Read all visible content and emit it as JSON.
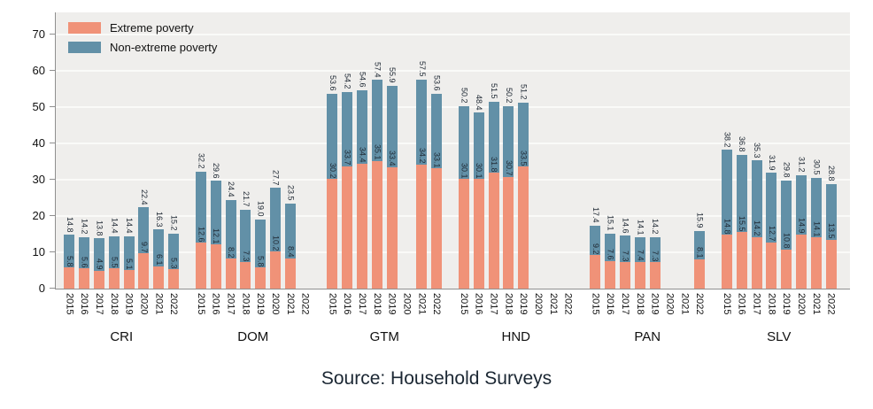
{
  "chart_data": {
    "type": "bar",
    "stacked": true,
    "title": "",
    "caption": "Source: Household Surveys",
    "legend": [
      {
        "key": "extreme",
        "label": "Extreme poverty"
      },
      {
        "key": "nonextreme",
        "label": "Non-extreme poverty"
      }
    ],
    "colors": {
      "extreme": "#F09278",
      "nonextreme": "#6290A7",
      "plot_bg": "#EFEEEC",
      "gridline": "#FAFAF8",
      "axis": "#8F8F8F"
    },
    "ylim": [
      0,
      76
    ],
    "yticks": [
      0,
      10,
      20,
      30,
      40,
      50,
      60,
      70
    ],
    "grid": true,
    "legend_position": "top-left-inside",
    "years": [
      "2015",
      "2016",
      "2017",
      "2018",
      "2019",
      "2020",
      "2021",
      "2022"
    ],
    "groups": [
      {
        "label": "CRI",
        "extreme": [
          5.8,
          5.6,
          4.9,
          5.5,
          5.1,
          9.7,
          6.1,
          5.3
        ],
        "total": [
          14.8,
          14.2,
          13.8,
          14.4,
          14.4,
          22.4,
          16.3,
          15.2
        ]
      },
      {
        "label": "DOM",
        "extreme": [
          12.6,
          12.1,
          8.2,
          7.3,
          5.8,
          10.2,
          8.4,
          null
        ],
        "total": [
          32.2,
          29.6,
          24.4,
          21.7,
          19.0,
          27.7,
          23.5,
          null
        ]
      },
      {
        "label": "GTM",
        "extreme": [
          30.2,
          33.7,
          34.4,
          35.1,
          33.4,
          null,
          34.2,
          33.1
        ],
        "total": [
          53.6,
          54.2,
          54.6,
          57.4,
          55.9,
          null,
          57.5,
          53.6
        ]
      },
      {
        "label": "HND",
        "extreme": [
          30.1,
          30.1,
          31.8,
          30.7,
          33.5,
          null,
          null,
          null
        ],
        "total": [
          50.2,
          48.4,
          51.5,
          50.2,
          51.2,
          null,
          null,
          null
        ]
      },
      {
        "label": "PAN",
        "extreme": [
          9.2,
          7.6,
          7.3,
          7.4,
          7.3,
          null,
          null,
          8.1
        ],
        "total": [
          17.4,
          15.1,
          14.6,
          14.1,
          14.2,
          null,
          null,
          15.9
        ]
      },
      {
        "label": "SLV",
        "extreme": [
          14.8,
          15.5,
          14.2,
          12.7,
          10.8,
          14.9,
          14.1,
          13.5
        ],
        "total": [
          38.2,
          36.8,
          35.3,
          31.9,
          29.8,
          31.2,
          30.5,
          28.8
        ]
      }
    ]
  }
}
